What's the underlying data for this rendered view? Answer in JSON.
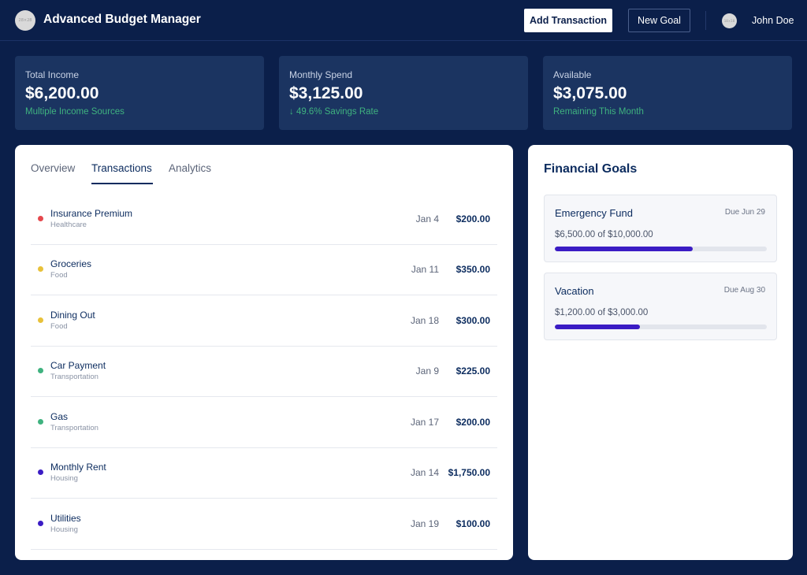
{
  "header": {
    "logo_text": "28×28",
    "title": "Advanced Budget Manager",
    "add_transaction_label": "Add Transaction",
    "new_goal_label": "New Goal",
    "avatar_text": "18×18",
    "user_name": "John Doe"
  },
  "stats": [
    {
      "label": "Total Income",
      "value": "$6,200.00",
      "sub": "Multiple Income Sources"
    },
    {
      "label": "Monthly Spend",
      "value": "$3,125.00",
      "sub": "↓ 49.6% Savings Rate"
    },
    {
      "label": "Available",
      "value": "$3,075.00",
      "sub": "Remaining This Month"
    }
  ],
  "tabs": [
    "Overview",
    "Transactions",
    "Analytics"
  ],
  "active_tab": "Transactions",
  "transactions": [
    {
      "name": "Insurance Premium",
      "category": "Healthcare",
      "date": "Jan 4",
      "amount": "$200.00",
      "color": "#e5484d"
    },
    {
      "name": "Groceries",
      "category": "Food",
      "date": "Jan 11",
      "amount": "$350.00",
      "color": "#e8c13a"
    },
    {
      "name": "Dining Out",
      "category": "Food",
      "date": "Jan 18",
      "amount": "$300.00",
      "color": "#e8c13a"
    },
    {
      "name": "Car Payment",
      "category": "Transportation",
      "date": "Jan 9",
      "amount": "$225.00",
      "color": "#3fb27f"
    },
    {
      "name": "Gas",
      "category": "Transportation",
      "date": "Jan 17",
      "amount": "$200.00",
      "color": "#3fb27f"
    },
    {
      "name": "Monthly Rent",
      "category": "Housing",
      "date": "Jan 14",
      "amount": "$1,750.00",
      "color": "#3b1cc4"
    },
    {
      "name": "Utilities",
      "category": "Housing",
      "date": "Jan 19",
      "amount": "$100.00",
      "color": "#3b1cc4"
    }
  ],
  "goals_title": "Financial Goals",
  "goals": [
    {
      "name": "Emergency Fund",
      "due": "Due Jun 29",
      "amount_text": "$6,500.00 of $10,000.00",
      "progress": 0.65
    },
    {
      "name": "Vacation",
      "due": "Due Aug 30",
      "amount_text": "$1,200.00 of $3,000.00",
      "progress": 0.4
    }
  ],
  "colors": {
    "background": "#0b1f4a",
    "card": "#1b3461",
    "accent_green": "#3fb27f",
    "progress_fill": "#3b1cc4"
  }
}
